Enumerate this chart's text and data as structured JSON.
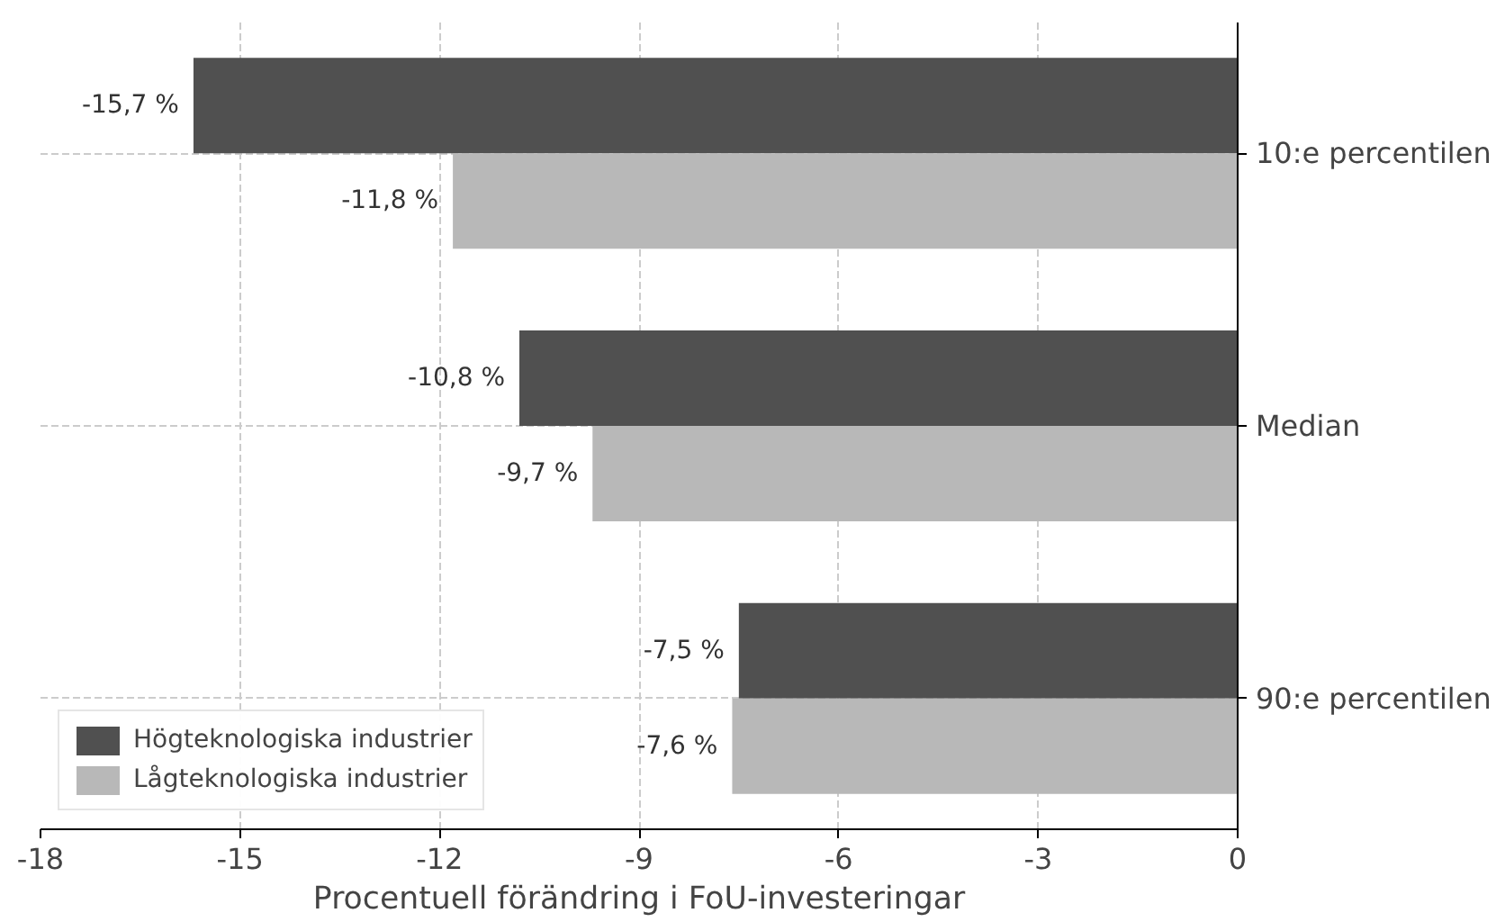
{
  "chart_data": {
    "type": "bar",
    "orientation": "horizontal",
    "xlabel": "Procentuell förändring i FoU-investeringar",
    "categories": [
      "10:e percentilen",
      "Median",
      "90:e percentilen"
    ],
    "series": [
      {
        "name": "Högteknologiska industrier",
        "color": "#505050",
        "values": [
          -15.7,
          -10.8,
          -7.5
        ],
        "value_labels": [
          "-15,7 %",
          "-10,8 %",
          "-7,5 %"
        ]
      },
      {
        "name": "Lågteknologiska industrier",
        "color": "#b8b8b8",
        "values": [
          -11.8,
          -9.7,
          -7.6
        ],
        "value_labels": [
          "-11,8 %",
          "-9,7 %",
          "-7,6 %"
        ]
      }
    ],
    "xlim": [
      -18,
      0
    ],
    "xticks": [
      -18,
      -15,
      -12,
      -9,
      -6,
      -3,
      0
    ],
    "grid": true,
    "legend": "bottom left"
  }
}
